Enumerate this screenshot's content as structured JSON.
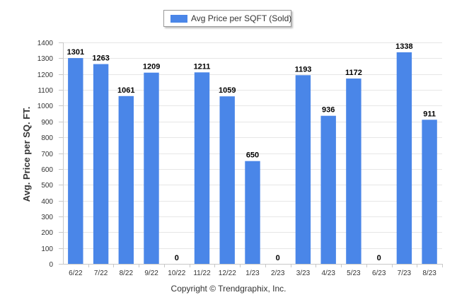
{
  "chart_data": {
    "type": "bar",
    "categories": [
      "6/22",
      "7/22",
      "8/22",
      "9/22",
      "10/22",
      "11/22",
      "12/22",
      "1/23",
      "2/23",
      "3/23",
      "4/23",
      "5/23",
      "6/23",
      "7/23",
      "8/23"
    ],
    "series": [
      {
        "name": "Avg Price per SQFT (Sold)",
        "values": [
          1301,
          1263,
          1061,
          1209,
          0,
          1211,
          1059,
          650,
          0,
          1193,
          936,
          1172,
          0,
          1338,
          911
        ]
      }
    ],
    "data_labels": [
      "1301",
      "1263",
      "1061",
      "1209",
      "0",
      "1211",
      "1059",
      "650",
      "0",
      "1193",
      "936",
      "1172",
      "0",
      "1338",
      "911"
    ],
    "ylabel": "Avg. Price per SQ. FT.",
    "xlabel": "",
    "ylim": [
      0,
      1400
    ],
    "yticks": [
      0,
      100,
      200,
      300,
      400,
      500,
      600,
      700,
      800,
      900,
      1000,
      1100,
      1200,
      1300,
      1400
    ],
    "grid": true,
    "legend_position": "top-center",
    "bar_color": "#4a86e8"
  },
  "legend": {
    "label": "Avg Price per SQFT (Sold)"
  },
  "footer": {
    "text": "Copyright © Trendgraphix, Inc."
  }
}
